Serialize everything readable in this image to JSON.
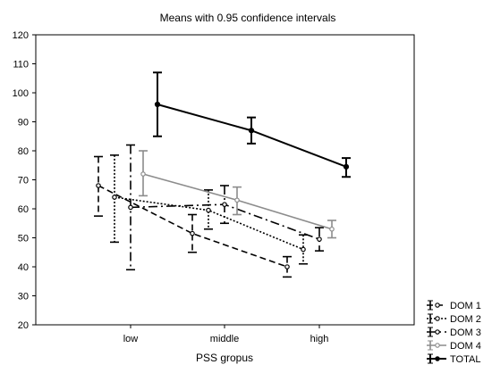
{
  "chart_data": {
    "type": "line",
    "title": "Means with 0.95 confidence intervals",
    "xlabel": "PSS gropus",
    "ylabel": "",
    "categories": [
      "low",
      "middle",
      "high"
    ],
    "ylim": [
      20,
      120
    ],
    "yticks": [
      20,
      30,
      40,
      50,
      60,
      70,
      80,
      90,
      100,
      110,
      120
    ],
    "grid": false,
    "legend_position": "bottom-right",
    "series": [
      {
        "name": "DOM 1",
        "color": "#000000",
        "dash": "dashed",
        "marker": "open-circle",
        "values": [
          68,
          51.5,
          40
        ],
        "lower": [
          57.5,
          45,
          36.5
        ],
        "upper": [
          78,
          58,
          43.5
        ]
      },
      {
        "name": "DOM 2",
        "color": "#000000",
        "dash": "dotted",
        "marker": "open-circle",
        "values": [
          64,
          59.5,
          46
        ],
        "lower": [
          48.5,
          53,
          41
        ],
        "upper": [
          78.5,
          66.5,
          51
        ]
      },
      {
        "name": "DOM 3",
        "color": "#000000",
        "dash": "dash-dot",
        "marker": "open-circle",
        "values": [
          60.5,
          61.5,
          49.5
        ],
        "lower": [
          39,
          55,
          45.5
        ],
        "upper": [
          82,
          68,
          53.5
        ]
      },
      {
        "name": "DOM 4",
        "color": "#8c8c8c",
        "dash": "solid",
        "marker": "open-circle",
        "values": [
          72,
          63,
          53
        ],
        "lower": [
          64.5,
          58,
          50
        ],
        "upper": [
          80,
          67.5,
          56
        ]
      },
      {
        "name": "TOTAL",
        "color": "#000000",
        "dash": "solid",
        "marker": "filled-circle",
        "values": [
          96,
          87,
          74.5
        ],
        "lower": [
          85,
          82.5,
          71
        ],
        "upper": [
          107,
          91.5,
          77.5
        ]
      }
    ]
  }
}
